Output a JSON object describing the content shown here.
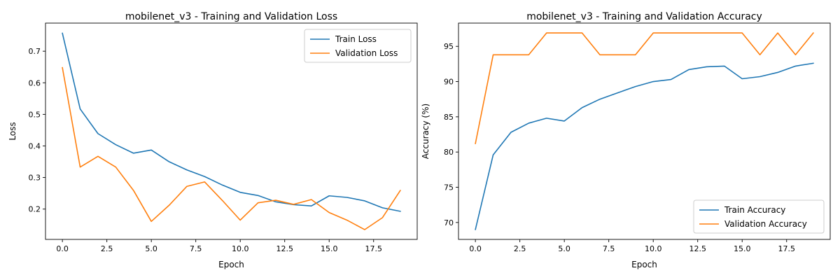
{
  "chart_data": [
    {
      "type": "line",
      "title": "mobilenet_v3 - Training and Validation Loss",
      "xlabel": "Epoch",
      "ylabel": "Loss",
      "x": [
        0,
        1,
        2,
        3,
        4,
        5,
        6,
        7,
        8,
        9,
        10,
        11,
        12,
        13,
        14,
        15,
        16,
        17,
        18,
        19
      ],
      "xlim": [
        -0.95,
        19.95
      ],
      "ylim": [
        0.104,
        0.789
      ],
      "xticks": [
        0,
        2.5,
        5,
        7.5,
        10,
        12.5,
        15,
        17.5
      ],
      "xtick_labels": [
        "0.0",
        "2.5",
        "5.0",
        "7.5",
        "10.0",
        "12.5",
        "15.0",
        "17.5"
      ],
      "yticks": [
        0.2,
        0.3,
        0.4,
        0.5,
        0.6,
        0.7
      ],
      "ytick_labels": [
        "0.2",
        "0.3",
        "0.4",
        "0.5",
        "0.6",
        "0.7"
      ],
      "grid": false,
      "legend_position": "top-right",
      "series": [
        {
          "name": "Train Loss",
          "color": "#1f77b4",
          "values": [
            0.757,
            0.517,
            0.439,
            0.404,
            0.377,
            0.387,
            0.35,
            0.324,
            0.303,
            0.276,
            0.253,
            0.243,
            0.223,
            0.214,
            0.21,
            0.242,
            0.237,
            0.226,
            0.204,
            0.193
          ]
        },
        {
          "name": "Validation Loss",
          "color": "#ff7f0e",
          "values": [
            0.648,
            0.333,
            0.367,
            0.333,
            0.259,
            0.161,
            0.212,
            0.272,
            0.286,
            0.227,
            0.165,
            0.22,
            0.228,
            0.215,
            0.23,
            0.189,
            0.165,
            0.135,
            0.173,
            0.259
          ]
        }
      ]
    },
    {
      "type": "line",
      "title": "mobilenet_v3 - Training and Validation Accuracy",
      "xlabel": "Epoch",
      "ylabel": "Accuracy (%)",
      "x": [
        0,
        1,
        2,
        3,
        4,
        5,
        6,
        7,
        8,
        9,
        10,
        11,
        12,
        13,
        14,
        15,
        16,
        17,
        18,
        19
      ],
      "xlim": [
        -0.95,
        19.95
      ],
      "ylim": [
        67.6,
        98.3
      ],
      "xticks": [
        0,
        2.5,
        5,
        7.5,
        10,
        12.5,
        15,
        17.5
      ],
      "xtick_labels": [
        "0.0",
        "2.5",
        "5.0",
        "7.5",
        "10.0",
        "12.5",
        "15.0",
        "17.5"
      ],
      "yticks": [
        70,
        75,
        80,
        85,
        90,
        95
      ],
      "ytick_labels": [
        "70",
        "75",
        "80",
        "85",
        "90",
        "95"
      ],
      "grid": false,
      "legend_position": "bottom-right",
      "series": [
        {
          "name": "Train Accuracy",
          "color": "#1f77b4",
          "values": [
            69.0,
            79.6,
            82.8,
            84.1,
            84.8,
            84.4,
            86.3,
            87.5,
            88.4,
            89.3,
            90.0,
            90.3,
            91.7,
            92.1,
            92.2,
            90.4,
            90.7,
            91.3,
            92.2,
            92.6
          ]
        },
        {
          "name": "Validation Accuracy",
          "color": "#ff7f0e",
          "values": [
            81.2,
            93.8,
            93.8,
            93.8,
            96.9,
            96.9,
            96.9,
            93.8,
            93.8,
            93.8,
            96.9,
            96.9,
            96.9,
            96.9,
            96.9,
            96.9,
            93.8,
            96.9,
            93.8,
            96.9
          ]
        }
      ]
    }
  ]
}
